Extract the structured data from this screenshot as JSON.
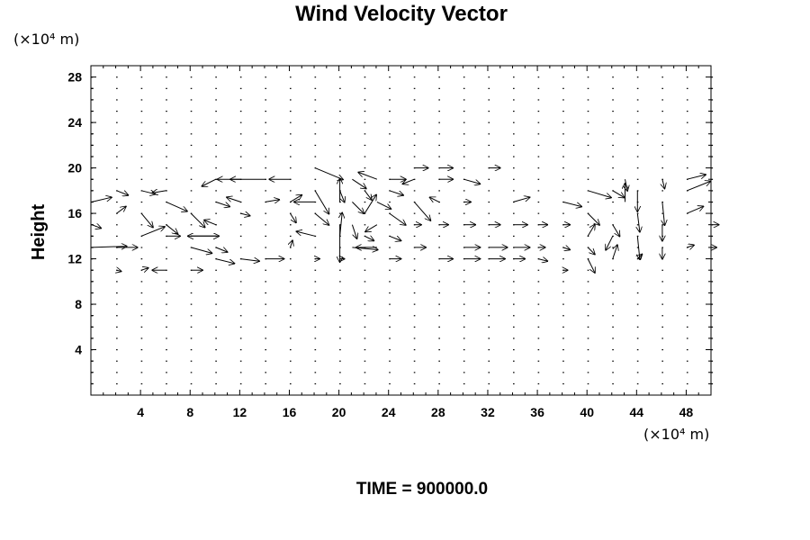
{
  "chart_data": {
    "type": "vector-field",
    "title": "Wind Velocity Vector",
    "ylabel": "Height",
    "x_unit": "(×10⁴ m)",
    "y_unit": "(×10⁴ m)",
    "footer": "TIME = 900000.0",
    "xlim": [
      0,
      50
    ],
    "ylim": [
      0,
      29
    ],
    "x_ticks": [
      "4",
      "8",
      "12",
      "16",
      "20",
      "24",
      "28",
      "32",
      "36",
      "40",
      "44",
      "48"
    ],
    "y_ticks": [
      "4",
      "8",
      "12",
      "16",
      "20",
      "24",
      "28"
    ],
    "grid": false,
    "vectors": [
      [
        0,
        17,
        1.7,
        0.4
      ],
      [
        0,
        13,
        3.0,
        0.1
      ],
      [
        0,
        15,
        0.8,
        -0.3
      ],
      [
        2,
        18,
        1.0,
        -0.4
      ],
      [
        2,
        16,
        0.8,
        0.6
      ],
      [
        2,
        13,
        1.8,
        0.0
      ],
      [
        2,
        11,
        0.4,
        -0.1
      ],
      [
        4,
        18,
        1.2,
        -0.3
      ],
      [
        4,
        16,
        1.0,
        -1.2
      ],
      [
        4,
        14,
        2.0,
        0.8
      ],
      [
        4,
        11,
        0.6,
        0.2
      ],
      [
        6,
        18,
        -1.2,
        -0.2
      ],
      [
        6,
        17,
        1.8,
        -0.8
      ],
      [
        6,
        15,
        1.0,
        -0.8
      ],
      [
        6,
        14,
        1.2,
        0.0
      ],
      [
        6,
        11,
        -1.2,
        0.0
      ],
      [
        8,
        16,
        1.2,
        -1.2
      ],
      [
        8,
        14,
        2.4,
        0.0
      ],
      [
        8,
        13,
        1.8,
        -0.5
      ],
      [
        8,
        11,
        1.0,
        0.0
      ],
      [
        10,
        19,
        -1.2,
        -0.6
      ],
      [
        10,
        17,
        1.2,
        -0.4
      ],
      [
        10,
        15,
        -1.0,
        0.4
      ],
      [
        10,
        14,
        -2.4,
        0.0
      ],
      [
        10,
        13,
        1.0,
        -0.4
      ],
      [
        10,
        12,
        1.6,
        -0.4
      ],
      [
        12,
        19,
        -2.0,
        0.0
      ],
      [
        12,
        17,
        -1.2,
        0.4
      ],
      [
        12,
        16,
        0.8,
        -0.2
      ],
      [
        12,
        12,
        1.6,
        -0.2
      ],
      [
        14,
        19,
        -3.0,
        0.0
      ],
      [
        14,
        17,
        1.2,
        0.2
      ],
      [
        14,
        12,
        1.6,
        0.0
      ],
      [
        16,
        19,
        -1.8,
        0.0
      ],
      [
        16,
        17,
        1.0,
        0.6
      ],
      [
        16,
        16,
        0.5,
        -0.8
      ],
      [
        16,
        13,
        0.2,
        0.6
      ],
      [
        18,
        20,
        2.4,
        -1.0
      ],
      [
        18,
        18,
        1.2,
        -2.0
      ],
      [
        18,
        17,
        -1.8,
        0.0
      ],
      [
        18,
        16,
        1.2,
        -1.0
      ],
      [
        18,
        14,
        -1.6,
        0.4
      ],
      [
        18,
        12,
        0.4,
        0.0
      ],
      [
        20,
        18,
        0.4,
        -1.0
      ],
      [
        20,
        17,
        0.0,
        2.0
      ],
      [
        20,
        15,
        0.0,
        -3.2
      ],
      [
        20,
        14,
        0.2,
        2.0
      ],
      [
        20,
        12,
        0.4,
        0.0
      ],
      [
        21,
        19,
        1.2,
        -0.8
      ],
      [
        21,
        17,
        1.0,
        -1.0
      ],
      [
        21,
        15,
        0.4,
        -1.2
      ],
      [
        21,
        13,
        2.2,
        -0.2
      ],
      [
        22,
        18,
        0.6,
        -0.8
      ],
      [
        22,
        16,
        1.0,
        1.6
      ],
      [
        22,
        14,
        0.8,
        -0.4
      ],
      [
        23,
        19,
        -1.6,
        0.6
      ],
      [
        23,
        17,
        1.2,
        -0.6
      ],
      [
        23,
        15,
        -1.0,
        -0.6
      ],
      [
        23,
        13,
        -1.8,
        0.0
      ],
      [
        24,
        19,
        1.4,
        0.0
      ],
      [
        24,
        18,
        1.2,
        -0.4
      ],
      [
        24,
        16,
        1.4,
        -1.0
      ],
      [
        24,
        14,
        1.0,
        -0.4
      ],
      [
        24,
        12,
        1.0,
        0.0
      ],
      [
        26,
        19,
        -1.0,
        -0.4
      ],
      [
        26,
        17,
        1.4,
        -1.6
      ],
      [
        26,
        15,
        0.6,
        0.0
      ],
      [
        26,
        13,
        1.0,
        0.0
      ],
      [
        26,
        20,
        1.2,
        0.0
      ],
      [
        28,
        19,
        1.2,
        0.0
      ],
      [
        28,
        17,
        -0.8,
        0.4
      ],
      [
        28,
        15,
        0.8,
        0.0
      ],
      [
        28,
        12,
        1.2,
        0.0
      ],
      [
        28,
        20,
        1.2,
        0.0
      ],
      [
        30,
        19,
        1.4,
        -0.4
      ],
      [
        30,
        17,
        0.6,
        0.0
      ],
      [
        30,
        15,
        1.0,
        0.0
      ],
      [
        30,
        13,
        1.4,
        0.0
      ],
      [
        30,
        12,
        1.4,
        0.0
      ],
      [
        32,
        20,
        1.0,
        0.0
      ],
      [
        32,
        15,
        1.0,
        0.0
      ],
      [
        32,
        13,
        1.6,
        0.0
      ],
      [
        32,
        12,
        1.4,
        0.0
      ],
      [
        34,
        17,
        1.4,
        0.4
      ],
      [
        34,
        15,
        1.2,
        0.0
      ],
      [
        34,
        13,
        1.4,
        0.0
      ],
      [
        34,
        12,
        1.0,
        0.0
      ],
      [
        36,
        15,
        0.8,
        0.0
      ],
      [
        36,
        13,
        0.6,
        0.0
      ],
      [
        36,
        12,
        0.8,
        -0.2
      ],
      [
        38,
        17,
        1.6,
        -0.4
      ],
      [
        38,
        15,
        0.6,
        0.0
      ],
      [
        38,
        13,
        0.6,
        -0.2
      ],
      [
        38,
        11,
        0.4,
        0.0
      ],
      [
        40,
        18,
        2.0,
        -0.6
      ],
      [
        40,
        16,
        1.0,
        -1.0
      ],
      [
        40,
        14,
        0.6,
        1.0
      ],
      [
        40,
        13,
        0.6,
        -0.6
      ],
      [
        40,
        12,
        0.6,
        -1.2
      ],
      [
        42,
        18,
        1.0,
        -0.6
      ],
      [
        42,
        15,
        0.6,
        -1.0
      ],
      [
        42,
        14,
        -0.6,
        -1.2
      ],
      [
        42,
        12,
        0.4,
        1.2
      ],
      [
        43,
        19,
        0.2,
        -1.0
      ],
      [
        43,
        17,
        0.0,
        1.6
      ],
      [
        44,
        18,
        0.0,
        -1.8
      ],
      [
        44,
        16,
        0.2,
        -1.6
      ],
      [
        44,
        14,
        0.2,
        -2.0
      ],
      [
        44,
        12,
        0.4,
        0.4
      ],
      [
        46,
        19,
        0.2,
        -0.8
      ],
      [
        46,
        17,
        0.2,
        -2.0
      ],
      [
        46,
        15,
        0.0,
        -1.4
      ],
      [
        46,
        13,
        0.0,
        -1.0
      ],
      [
        48,
        19,
        1.6,
        0.4
      ],
      [
        48,
        18,
        2.0,
        0.8
      ],
      [
        48,
        16,
        1.4,
        0.6
      ],
      [
        48,
        13,
        0.6,
        0.2
      ],
      [
        50,
        15,
        0.6,
        0.0
      ],
      [
        50,
        13,
        0.4,
        0.0
      ]
    ]
  }
}
